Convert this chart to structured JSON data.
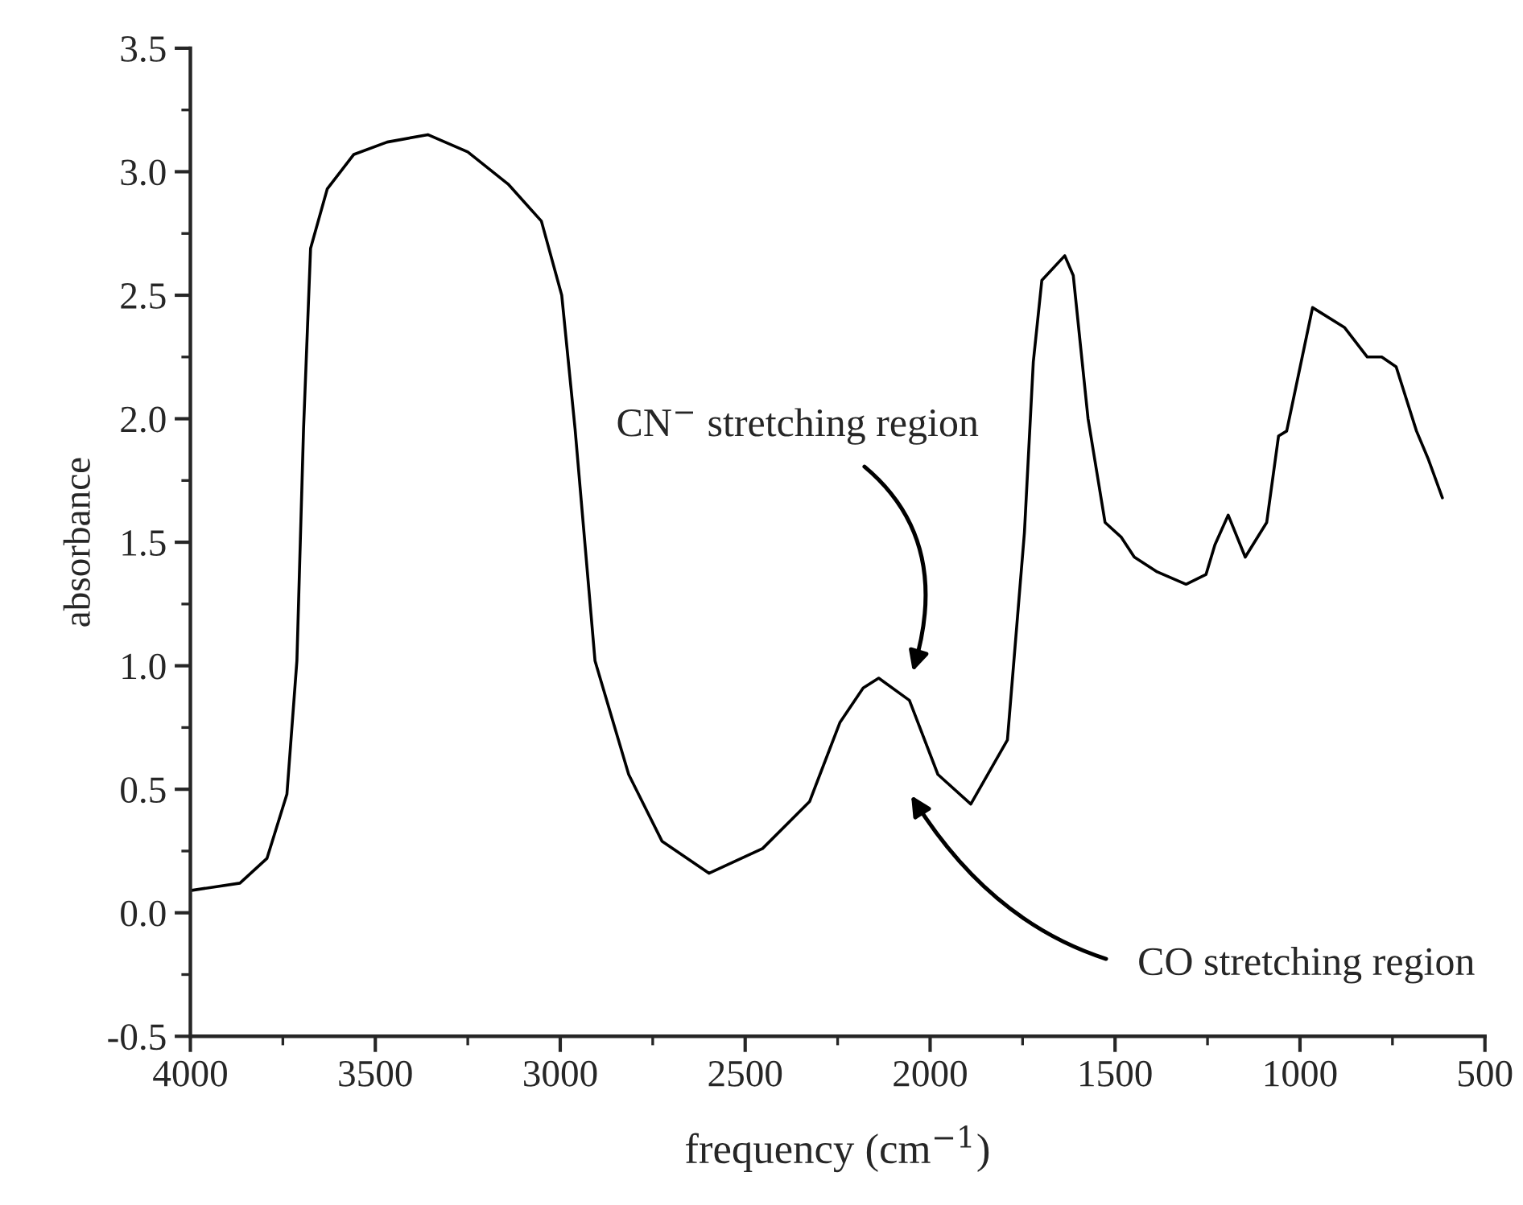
{
  "chart_data": {
    "type": "line",
    "xlabel": "frequency (cm$^{−1}$)",
    "ylabel": "absorbance",
    "xlim": [
      4000,
      500
    ],
    "ylim": [
      -0.5,
      3.5
    ],
    "xticks": [
      4000,
      3500,
      3000,
      2500,
      2000,
      1500,
      1000,
      500
    ],
    "yticks": [
      {
        "value": -0.5,
        "label": "-0.5"
      },
      {
        "value": 0,
        "label": "0.0"
      },
      {
        "value": 0.5,
        "label": "0.5"
      },
      {
        "value": 1,
        "label": "1.0"
      },
      {
        "value": 1.5,
        "label": "1.5"
      },
      {
        "value": 2,
        "label": "2.0"
      },
      {
        "value": 2.5,
        "label": "2.5"
      },
      {
        "value": 3,
        "label": "3.0"
      },
      {
        "value": 3.5,
        "label": "3.5"
      }
    ],
    "grid": false,
    "legend": false,
    "marker": "none",
    "line_style": "solid",
    "series": [
      {
        "color": "#000000",
        "x": [
          4000,
          3866,
          3793,
          3739,
          3712,
          3694,
          3675,
          3630,
          3558,
          3468,
          3358,
          3250,
          3141,
          3051,
          2996,
          2960,
          2906,
          2815,
          2725,
          2598,
          2453,
          2326,
          2244,
          2181,
          2139,
          2056,
          1979,
          1890,
          1791,
          1745,
          1721,
          1698,
          1636,
          1613,
          1573,
          1527,
          1483,
          1448,
          1386,
          1308,
          1254,
          1230,
          1194,
          1148,
          1090,
          1058,
          1036,
          966,
          880,
          818,
          779,
          740,
          685,
          654,
          615
        ],
        "values": [
          0.09,
          0.12,
          0.22,
          0.48,
          1.02,
          1.96,
          2.69,
          2.93,
          3.07,
          3.12,
          3.15,
          3.08,
          2.95,
          2.8,
          2.5,
          1.96,
          1.02,
          0.56,
          0.29,
          0.16,
          0.26,
          0.45,
          0.77,
          0.91,
          0.95,
          0.86,
          0.56,
          0.44,
          0.7,
          1.54,
          2.23,
          2.56,
          2.66,
          2.58,
          2.0,
          1.58,
          1.52,
          1.44,
          1.38,
          1.33,
          1.37,
          1.49,
          1.61,
          1.44,
          1.58,
          1.93,
          1.95,
          2.45,
          2.37,
          2.25,
          2.25,
          2.21,
          1.95,
          1.84,
          1.68
        ]
      }
    ],
    "annotations": [
      "CN$^{−}$ stretching region",
      "CO stretching region"
    ]
  }
}
